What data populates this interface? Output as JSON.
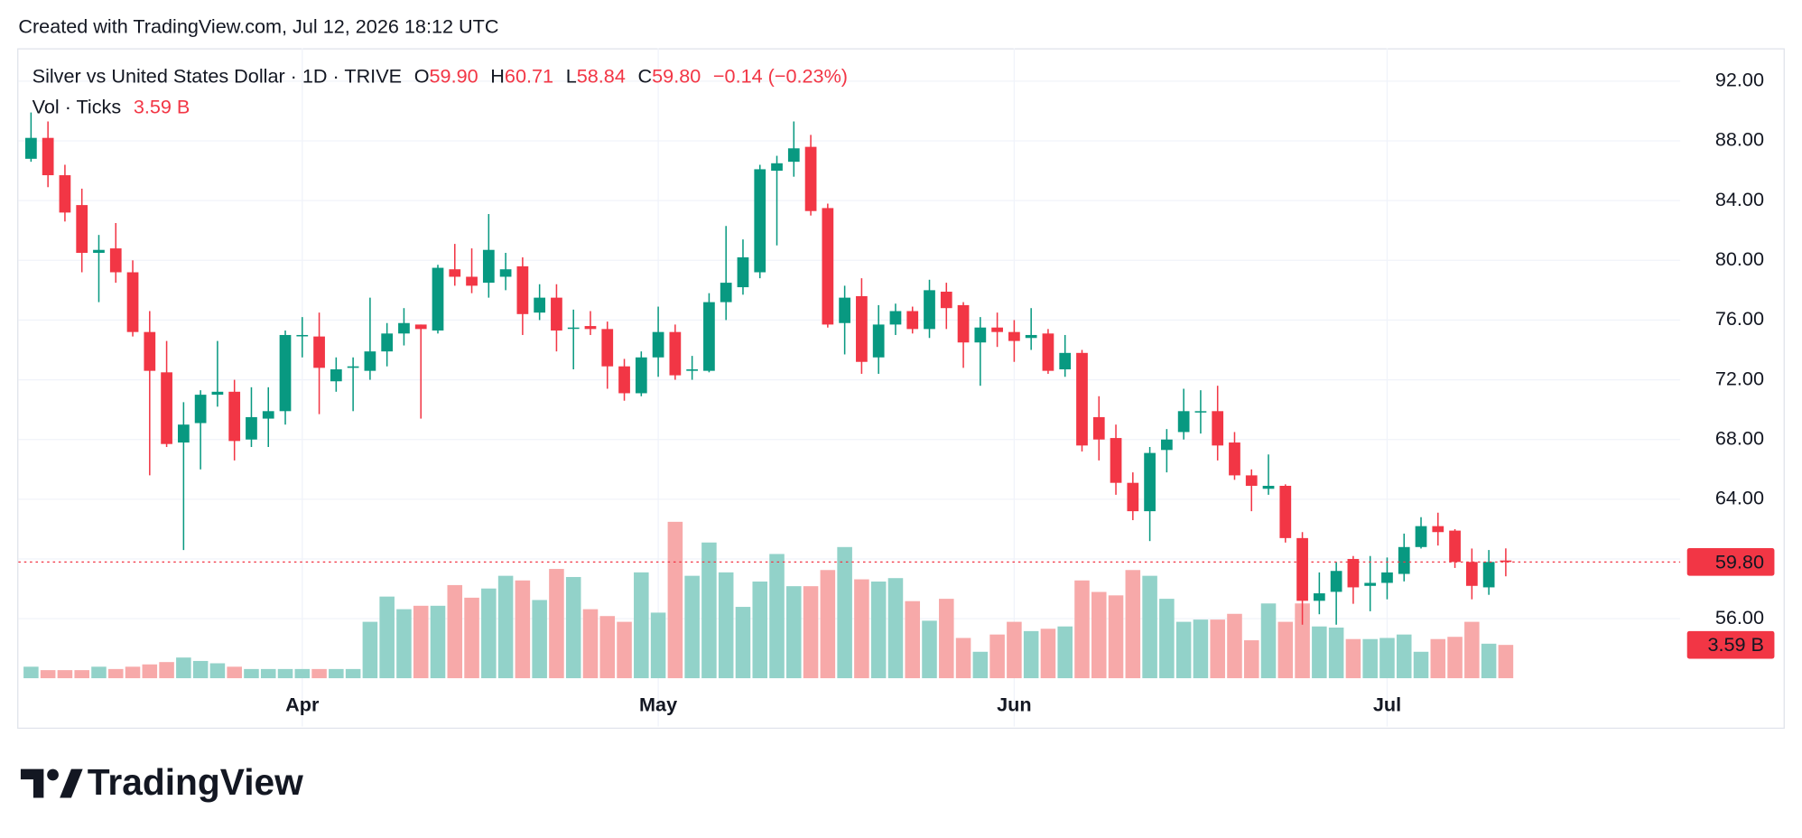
{
  "header": {
    "created": "Created with TradingView.com, Jul 12, 2026 18:12 UTC"
  },
  "chart_data": {
    "type": "candlestick",
    "legend": {
      "symbol": "Silver vs United States Dollar · 1D · TRIVE",
      "open_label": "O",
      "open": "59.90",
      "high_label": "H",
      "high": "60.71",
      "low_label": "L",
      "low": "58.84",
      "close_label": "C",
      "close": "59.80",
      "change": "−0.14 (−0.23%)"
    },
    "categories": [
      null,
      null,
      null,
      null,
      null,
      null,
      null,
      null,
      null,
      null,
      null,
      null,
      null,
      null,
      null,
      null,
      "Apr",
      null,
      null,
      null,
      null,
      null,
      null,
      null,
      null,
      null,
      null,
      null,
      null,
      null,
      null,
      null,
      null,
      null,
      null,
      null,
      null,
      "May",
      null,
      null,
      null,
      null,
      null,
      null,
      null,
      null,
      null,
      null,
      null,
      null,
      null,
      null,
      null,
      null,
      null,
      null,
      null,
      null,
      "Jun",
      null,
      null,
      null,
      null,
      null,
      null,
      null,
      null,
      null,
      null,
      null,
      null,
      null,
      null,
      null,
      null,
      null,
      null,
      null,
      null,
      null,
      "Jul",
      null,
      null,
      null,
      null,
      null,
      null,
      null
    ],
    "open": [
      86.8,
      88.2,
      85.7,
      83.7,
      80.5,
      80.8,
      79.2,
      75.2,
      72.5,
      67.8,
      69.1,
      71.0,
      71.2,
      68.0,
      69.4,
      69.9,
      75.0,
      74.9,
      71.9,
      72.8,
      72.6,
      73.9,
      75.1,
      75.7,
      75.3,
      79.4,
      78.9,
      78.5,
      78.9,
      79.6,
      76.5,
      77.5,
      75.5,
      75.6,
      75.4,
      72.9,
      71.1,
      73.5,
      75.2,
      72.6,
      72.6,
      77.2,
      78.2,
      79.2,
      86.0,
      86.6,
      87.6,
      83.5,
      75.8,
      77.6,
      73.5,
      75.7,
      76.6,
      75.4,
      77.9,
      77.0,
      74.5,
      75.5,
      75.2,
      74.8,
      75.1,
      72.7,
      73.8,
      69.5,
      68.1,
      65.1,
      63.2,
      67.3,
      68.5,
      69.9,
      69.9,
      67.8,
      65.6,
      64.7,
      64.9,
      61.4,
      57.2,
      57.8,
      60.0,
      58.2,
      58.4,
      59.0,
      60.8,
      62.2,
      61.9,
      59.8,
      58.1,
      59.9
    ],
    "high": [
      89.9,
      89.3,
      86.4,
      84.8,
      81.7,
      82.5,
      80.0,
      76.6,
      74.6,
      70.5,
      71.3,
      74.6,
      72.0,
      71.5,
      71.5,
      75.3,
      76.2,
      76.5,
      73.5,
      73.5,
      77.5,
      75.8,
      76.8,
      75.7,
      79.7,
      81.1,
      80.8,
      83.1,
      80.5,
      80.2,
      78.4,
      78.4,
      76.7,
      76.6,
      75.9,
      73.4,
      73.9,
      76.9,
      75.7,
      73.6,
      77.8,
      82.3,
      81.4,
      86.4,
      87.0,
      89.3,
      88.4,
      83.8,
      78.3,
      78.8,
      77.0,
      77.1,
      76.9,
      78.7,
      78.5,
      77.2,
      76.2,
      76.5,
      76.0,
      76.8,
      75.4,
      75.0,
      74.0,
      70.9,
      69.0,
      65.8,
      67.5,
      68.7,
      71.4,
      71.3,
      71.6,
      68.5,
      66.0,
      67.0,
      65.0,
      61.8,
      59.1,
      59.8,
      60.2,
      60.2,
      60.1,
      61.7,
      62.8,
      63.1,
      62.0,
      60.7,
      60.6,
      60.71
    ],
    "low": [
      86.6,
      84.9,
      82.6,
      79.2,
      77.2,
      78.5,
      74.9,
      65.6,
      67.5,
      60.6,
      66.0,
      70.2,
      66.6,
      67.5,
      67.5,
      69.0,
      73.5,
      69.7,
      71.2,
      69.9,
      72.0,
      72.9,
      74.3,
      69.4,
      75.1,
      78.3,
      77.8,
      77.5,
      78.0,
      75.0,
      76.0,
      73.9,
      72.7,
      75.0,
      71.4,
      70.6,
      70.9,
      72.2,
      72.0,
      72.0,
      72.5,
      76.0,
      77.7,
      78.8,
      81.0,
      85.6,
      83.0,
      75.5,
      73.7,
      72.4,
      72.4,
      75.0,
      75.1,
      74.8,
      75.4,
      72.8,
      71.6,
      74.2,
      73.2,
      74.0,
      72.4,
      72.2,
      67.2,
      66.6,
      64.3,
      62.6,
      61.2,
      65.8,
      68.0,
      68.4,
      66.6,
      65.3,
      63.2,
      64.3,
      61.1,
      55.6,
      56.3,
      55.6,
      57.0,
      56.5,
      57.3,
      58.5,
      60.7,
      60.9,
      59.4,
      57.3,
      57.6,
      58.84
    ],
    "close": [
      88.2,
      85.7,
      83.2,
      80.5,
      80.7,
      79.2,
      75.2,
      72.6,
      67.7,
      69.0,
      71.0,
      71.2,
      67.9,
      69.5,
      69.9,
      75.0,
      75.0,
      72.8,
      72.7,
      72.9,
      73.9,
      75.1,
      75.8,
      75.4,
      79.5,
      78.9,
      78.3,
      80.7,
      79.4,
      76.4,
      77.5,
      75.3,
      75.5,
      75.4,
      72.9,
      71.1,
      73.5,
      75.2,
      72.3,
      72.7,
      77.2,
      78.5,
      80.2,
      86.1,
      86.5,
      87.5,
      83.3,
      75.7,
      77.5,
      73.2,
      75.7,
      76.6,
      75.4,
      78.0,
      76.8,
      74.5,
      75.5,
      75.2,
      74.6,
      75.0,
      72.6,
      73.8,
      67.6,
      68.0,
      65.1,
      63.2,
      67.1,
      68.0,
      69.9,
      69.9,
      67.6,
      65.6,
      64.9,
      64.9,
      61.4,
      57.2,
      57.7,
      59.2,
      58.1,
      58.4,
      59.1,
      60.8,
      62.2,
      61.8,
      59.8,
      58.2,
      59.8,
      59.8
    ],
    "ylim": [
      51.4,
      94.2
    ],
    "yticks": [
      {
        "value": 56,
        "label": "56.00"
      },
      {
        "value": 60,
        "label": "60.00"
      },
      {
        "value": 64,
        "label": "64.00"
      },
      {
        "value": 68,
        "label": "68.00"
      },
      {
        "value": 72,
        "label": "72.00"
      },
      {
        "value": 76,
        "label": "76.00"
      },
      {
        "value": 80,
        "label": "80.00"
      },
      {
        "value": 84,
        "label": "84.00"
      },
      {
        "value": 88,
        "label": "88.00"
      },
      {
        "value": 92,
        "label": "92.00"
      }
    ],
    "grid": true,
    "up_color": "#089981",
    "down_color": "#f23645",
    "last_price_label": "59.80",
    "volume": {
      "name": "Vol · Ticks",
      "last_label": "3.59 B",
      "up_color": "#92d2c9",
      "down_color": "#f7a9a9",
      "label_color": "#f23645",
      "values": [
        1.24,
        0.87,
        0.87,
        0.87,
        1.24,
        0.99,
        1.24,
        1.49,
        1.74,
        2.23,
        1.86,
        1.61,
        1.24,
        0.99,
        0.99,
        0.99,
        0.99,
        0.99,
        0.99,
        0.99,
        6.08,
        8.8,
        7.44,
        7.81,
        7.81,
        10.04,
        8.68,
        9.67,
        11.04,
        10.54,
        8.43,
        11.78,
        10.91,
        7.44,
        6.7,
        6.08,
        11.41,
        7.07,
        16.86,
        11.04,
        14.63,
        11.41,
        7.69,
        10.42,
        13.39,
        9.92,
        9.92,
        11.66,
        14.14,
        10.66,
        10.42,
        10.79,
        8.31,
        6.2,
        8.56,
        4.34,
        2.85,
        4.71,
        6.08,
        5.08,
        5.33,
        5.58,
        10.54,
        9.3,
        8.93,
        11.66,
        11.04,
        8.56,
        6.08,
        6.32,
        6.32,
        6.94,
        4.09,
        8.06,
        6.08,
        8.06,
        5.58,
        5.46,
        4.22,
        4.22,
        4.34,
        4.71,
        2.85,
        4.22,
        4.46,
        6.08,
        3.72,
        3.59
      ]
    }
  },
  "footer": {
    "logo": "TradingView"
  }
}
